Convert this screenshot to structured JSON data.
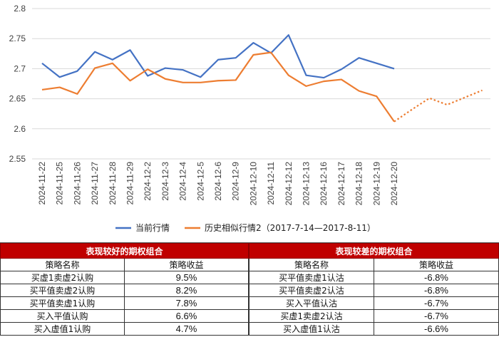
{
  "chart_data": {
    "type": "line",
    "categories": [
      "2024-11-22",
      "2024-11-25",
      "2024-11-26",
      "2024-11-27",
      "2024-11-28",
      "2024-11-29",
      "2024-12-2",
      "2024-12-3",
      "2024-12-4",
      "2024-12-5",
      "2024-12-6",
      "2024-12-9",
      "2024-12-10",
      "2024-12-11",
      "2024-12-12",
      "2024-12-13",
      "2024-12-16",
      "2024-12-17",
      "2024-12-18",
      "2024-12-19",
      "2024-12-20"
    ],
    "ylim": [
      2.55,
      2.8
    ],
    "yticks": [
      "2.55",
      "2.6",
      "2.65",
      "2.7",
      "2.75",
      "2.8"
    ],
    "ytick_values": [
      2.55,
      2.6,
      2.65,
      2.7,
      2.75,
      2.8
    ],
    "series": [
      {
        "name": "当前行情",
        "color": "#4472c4",
        "values": [
          2.709,
          2.686,
          2.696,
          2.728,
          2.715,
          2.731,
          2.688,
          2.701,
          2.698,
          2.686,
          2.715,
          2.718,
          2.743,
          2.726,
          2.756,
          2.689,
          2.685,
          2.699,
          2.718,
          2.709,
          2.7
        ]
      },
      {
        "name": "历史相似行情2（2017-7-14—2017-8-11）",
        "color": "#ed7d31",
        "values": [
          2.665,
          2.669,
          2.658,
          2.701,
          2.709,
          2.68,
          2.699,
          2.683,
          2.677,
          2.677,
          2.68,
          2.681,
          2.723,
          2.727,
          2.689,
          2.671,
          2.679,
          2.682,
          2.663,
          2.654,
          2.612
        ],
        "projection": [
          2.612,
          2.632,
          2.651,
          2.64,
          2.652,
          2.664
        ]
      }
    ]
  },
  "tables": {
    "good": {
      "title": "表现较好的期权组合",
      "headers": [
        "策略名称",
        "策略收益"
      ],
      "rows": [
        {
          "name": "买虚1卖虚2认购",
          "value": "9.5%"
        },
        {
          "name": "买平值卖虚2认购",
          "value": "8.2%"
        },
        {
          "name": "买平值卖虚1认购",
          "value": "7.8%"
        },
        {
          "name": "买入平值认购",
          "value": "6.6%"
        },
        {
          "name": "买入虚值1认购",
          "value": "4.7%"
        }
      ]
    },
    "bad": {
      "title": "表现较差的期权组合",
      "headers": [
        "策略名称",
        "策略收益"
      ],
      "rows": [
        {
          "name": "买平值卖虚1认沽",
          "value": "-6.8%"
        },
        {
          "name": "买平值卖虚2认沽",
          "value": "-6.8%"
        },
        {
          "name": "买入平值认沽",
          "value": "-6.7%"
        },
        {
          "name": "买虚1卖虚2认沽",
          "value": "-6.7%"
        },
        {
          "name": "买入虚值1认沽",
          "value": "-6.6%"
        }
      ]
    }
  }
}
